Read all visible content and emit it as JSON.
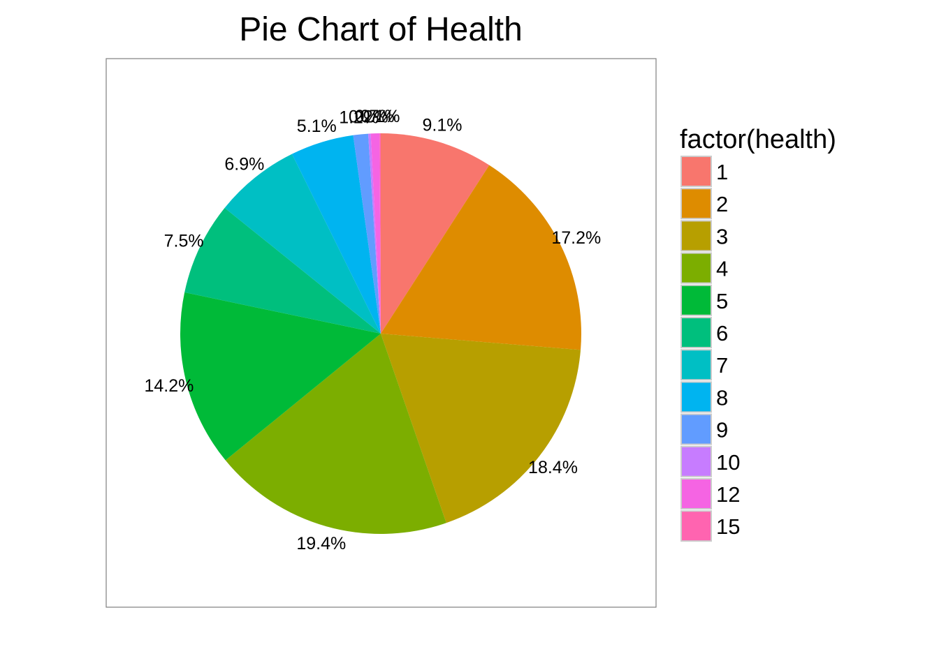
{
  "chart_data": {
    "type": "pie",
    "title": "Pie Chart of Health",
    "legend": {
      "title": "factor(health)",
      "placement": "right"
    },
    "slices": [
      {
        "category": "1",
        "value": 9.1,
        "label": "9.1%",
        "color": "#F8766D"
      },
      {
        "category": "2",
        "value": 17.2,
        "label": "17.2%",
        "color": "#DE8C00"
      },
      {
        "category": "3",
        "value": 18.4,
        "label": "18.4%",
        "color": "#B79F00"
      },
      {
        "category": "4",
        "value": 19.4,
        "label": "19.4%",
        "color": "#7CAE00"
      },
      {
        "category": "5",
        "value": 14.2,
        "label": "14.2%",
        "color": "#00BA38"
      },
      {
        "category": "6",
        "value": 7.5,
        "label": "7.5%",
        "color": "#00BF7D"
      },
      {
        "category": "7",
        "value": 6.9,
        "label": "6.9%",
        "color": "#00BFC4"
      },
      {
        "category": "8",
        "value": 5.1,
        "label": "5.1%",
        "color": "#00B4F0"
      },
      {
        "category": "9",
        "value": 1.2,
        "label": "1.2%",
        "color": "#619CFF"
      },
      {
        "category": "10",
        "value": 0.2,
        "label": "0.2%",
        "color": "#C77CFF"
      },
      {
        "category": "12",
        "value": 0.7,
        "label": "0.7%",
        "color": "#F564E3"
      },
      {
        "category": "15",
        "value": 0.1,
        "label": "0.1%",
        "color": "#FF64B0"
      }
    ],
    "panel_border": true,
    "grid": false
  }
}
